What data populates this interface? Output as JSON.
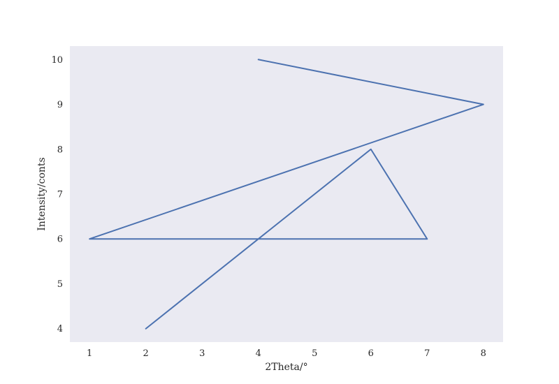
{
  "chart_data": {
    "type": "line",
    "title": "",
    "xlabel": "2Theta/°",
    "ylabel": "Intensity/conts",
    "xlim": [
      0.65,
      8.35
    ],
    "ylim": [
      3.7,
      10.3
    ],
    "xticks": [
      1,
      2,
      3,
      4,
      5,
      6,
      7,
      8
    ],
    "yticks": [
      4,
      5,
      6,
      7,
      8,
      9,
      10
    ],
    "grid": false,
    "background": "#eaeaf2",
    "series": [
      {
        "color": "#4c72b0",
        "x": [
          2,
          6,
          7,
          1,
          8,
          4
        ],
        "y": [
          4,
          8,
          6,
          6,
          9,
          10
        ]
      }
    ]
  }
}
